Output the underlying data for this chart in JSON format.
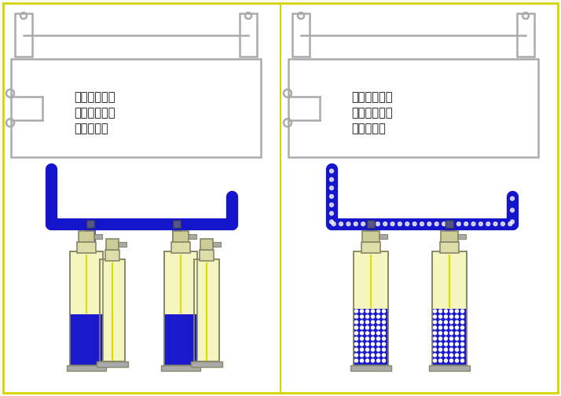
{
  "bg_color": "#fafaf0",
  "border_color": "#d4d400",
  "pipe_blue": "#1515cc",
  "cylinder_yellow": "#f5f5c0",
  "cylinder_blue": "#1a1acc",
  "cylinder_gray": "#888866",
  "wall_gray": "#aaaaaa",
  "text_color": "#111111",
  "left_label": [
    "外贮压式七氟",
    "丙烷灭火系统",
    "喷放一半时"
  ],
  "right_label": [
    "内贮压式七氟",
    "丙烷灭火系统",
    "喷放一半时"
  ],
  "label_fontsize": 10.5,
  "figsize": [
    7.14,
    5.04
  ],
  "dpi": 100
}
